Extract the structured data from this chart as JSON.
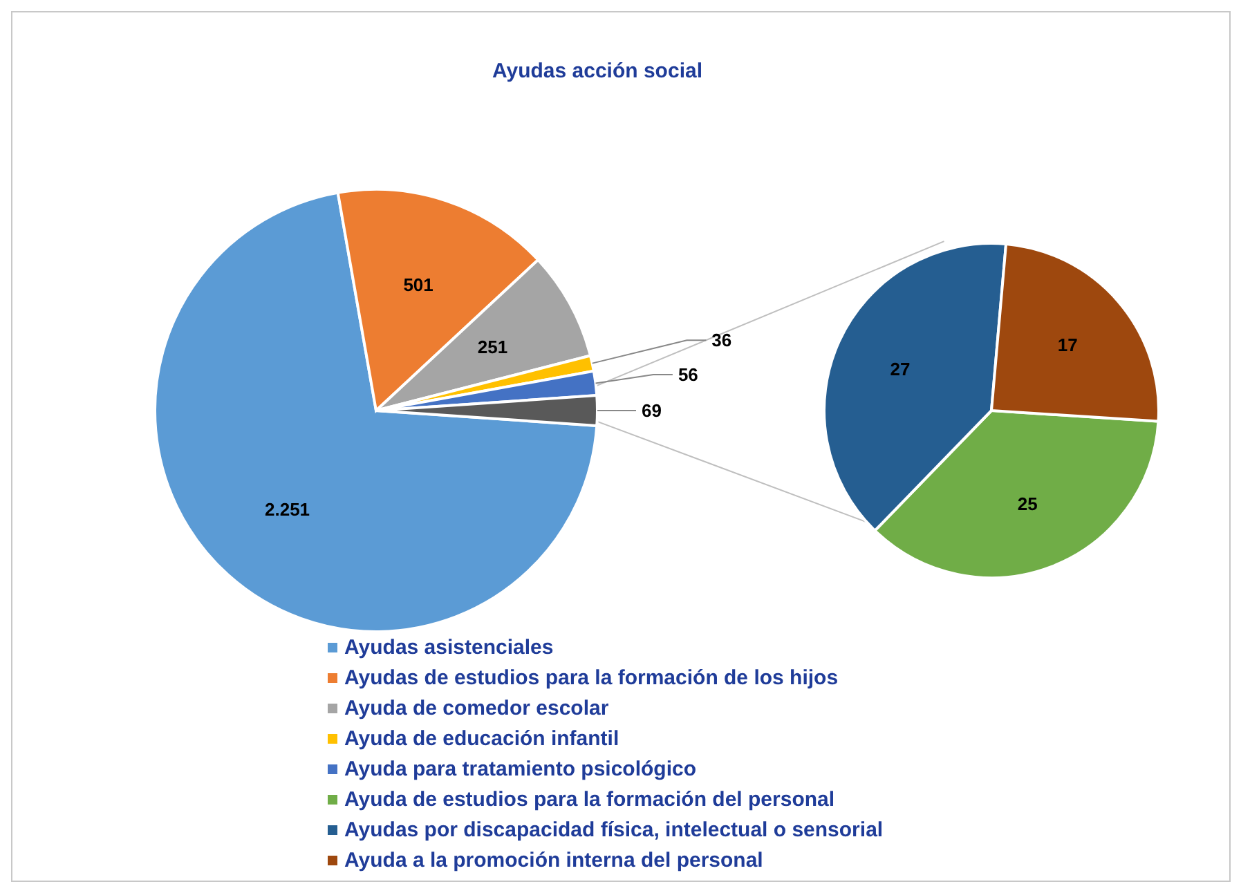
{
  "chart_data": [
    {
      "type": "pie",
      "title": "Ayudas acción social",
      "legend": "bottom",
      "categories": [
        "Ayudas asistenciales",
        "Ayudas de estudios para la formación de los hijos",
        "Ayuda de comedor escolar",
        "Ayuda de educación infantil",
        "Ayuda para tratamiento psicológico",
        null
      ],
      "values": [
        2251,
        501,
        251,
        36,
        56,
        69
      ],
      "colors": [
        "#5b9bd5",
        "#ed7d31",
        "#a5a5a5",
        "#ffc000",
        "#4472c4",
        "#595959"
      ],
      "value_labels": [
        "2.251",
        "501",
        "251",
        "36",
        "56",
        "69"
      ]
    },
    {
      "type": "pie",
      "legend": "bottom",
      "categories": [
        "Ayuda de estudios para la formación del personal",
        "Ayudas por discapacidad física, intelectual o sensorial",
        "Ayuda a la promoción interna del personal"
      ],
      "values": [
        25,
        27,
        17
      ],
      "colors": [
        "#70ad47",
        "#255e91",
        "#9e480e"
      ],
      "data_labels": true
    }
  ]
}
